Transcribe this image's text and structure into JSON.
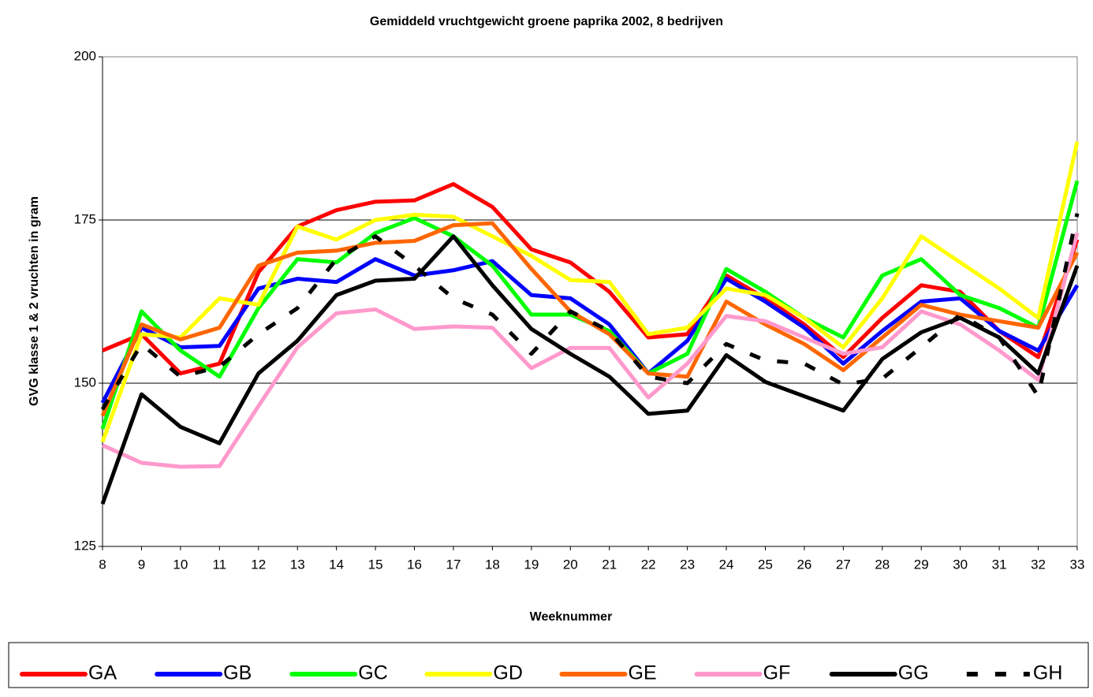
{
  "chart_data": {
    "type": "line",
    "title": "Gemiddeld vruchtgewicht groene paprika 2002, 8 bedrijven",
    "x_label": "Weeknummer",
    "y_label": "GVG klasse 1 & 2 vruchten in gram",
    "x": [
      8,
      9,
      10,
      11,
      12,
      13,
      14,
      15,
      16,
      17,
      18,
      19,
      20,
      21,
      22,
      23,
      24,
      25,
      26,
      27,
      28,
      29,
      30,
      31,
      32,
      33
    ],
    "xlim": [
      8,
      33
    ],
    "xticks": [
      8,
      9,
      10,
      11,
      12,
      13,
      14,
      15,
      16,
      17,
      18,
      19,
      20,
      21,
      22,
      23,
      24,
      25,
      26,
      27,
      28,
      29,
      30,
      31,
      32,
      33
    ],
    "ylim": [
      125,
      200
    ],
    "yticks": [
      125,
      150,
      175,
      200
    ],
    "grid": true,
    "legend": "bottom",
    "series": [
      {
        "name": "GA",
        "color": "#ff0000",
        "values": [
          155,
          157.5,
          151.5,
          153,
          167,
          174,
          176.5,
          177.8,
          178,
          180.5,
          177,
          170.5,
          168.5,
          164,
          157,
          157.5,
          166.5,
          163,
          159,
          154,
          160,
          165,
          164,
          158,
          154,
          172
        ]
      },
      {
        "name": "GB",
        "color": "#0000ff",
        "values": [
          147,
          158.5,
          155.5,
          155.7,
          164.5,
          166,
          165.5,
          169,
          166.5,
          167.3,
          168.7,
          163.5,
          163,
          159,
          151.5,
          156.5,
          166,
          162.5,
          158.5,
          153,
          158,
          162.5,
          163,
          158,
          155,
          165
        ]
      },
      {
        "name": "GC",
        "color": "#00ff00",
        "values": [
          143,
          161,
          155,
          151,
          161.5,
          169,
          168.5,
          173,
          175.3,
          172.5,
          168,
          160.5,
          160.5,
          158,
          151.5,
          154.5,
          167.5,
          164,
          160,
          157,
          166.5,
          169,
          163.5,
          161.5,
          158.5,
          181
        ]
      },
      {
        "name": "GD",
        "color": "#ffff00",
        "values": [
          141,
          157.5,
          157,
          163,
          162,
          174,
          172,
          175,
          175.8,
          175.5,
          172.5,
          169.5,
          165.8,
          165.5,
          157.5,
          158.5,
          164.5,
          163.5,
          160,
          155.5,
          163,
          172.5,
          168.5,
          164.5,
          160,
          187
        ]
      },
      {
        "name": "GE",
        "color": "#ff6600",
        "values": [
          145,
          159,
          156.7,
          158.5,
          168,
          170,
          170.3,
          171.5,
          171.8,
          174.2,
          174.5,
          167.5,
          161,
          157.5,
          151.5,
          151,
          162.5,
          159,
          156,
          152,
          157,
          162,
          160.5,
          159.5,
          158.5,
          170
        ]
      },
      {
        "name": "GF",
        "color": "#ff99cc",
        "values": [
          140.5,
          137.8,
          137.2,
          137.3,
          146.5,
          155.5,
          160.7,
          161.3,
          158.3,
          158.7,
          158.5,
          152.3,
          155.4,
          155.4,
          147.8,
          153,
          160.3,
          159.5,
          157,
          154.5,
          155.5,
          161,
          159,
          155,
          150.5,
          173
        ]
      },
      {
        "name": "GG",
        "color": "#000000",
        "values": [
          131.5,
          148.3,
          143.3,
          140.8,
          151.5,
          156.5,
          163.5,
          165.7,
          166,
          172.5,
          165,
          158.3,
          154.5,
          151,
          145.3,
          145.8,
          154.3,
          150.2,
          148,
          145.8,
          153.7,
          157.8,
          160,
          157,
          151.5,
          168
        ]
      },
      {
        "name": "GH",
        "color": "#000000",
        "dashed": true,
        "values": [
          146,
          156,
          151,
          152.5,
          157.5,
          161.5,
          169,
          172.5,
          168,
          163,
          160.5,
          154.5,
          161,
          158,
          151,
          150,
          156,
          153.5,
          153,
          149.8,
          150.7,
          155.5,
          160.5,
          157,
          148,
          176
        ]
      }
    ]
  }
}
